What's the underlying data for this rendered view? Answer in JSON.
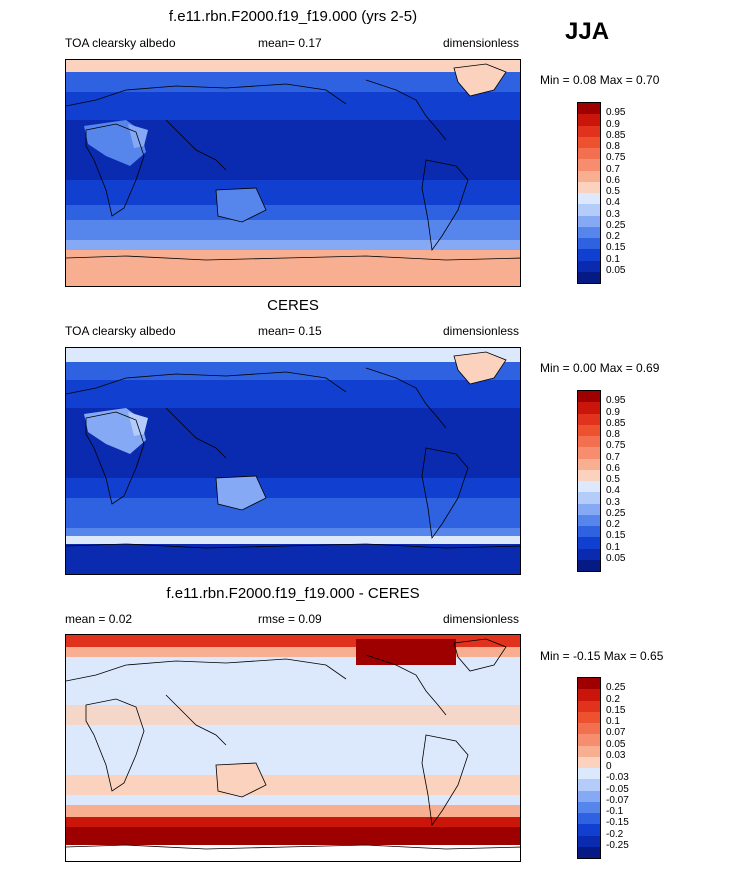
{
  "season": "JJA",
  "panels": [
    {
      "title": "f.e11.rbn.F2000.f19_f19.000 (yrs 2-5)",
      "left_label": "TOA clearsky albedo",
      "stat": "mean=  0.17",
      "units": "dimensionless",
      "minmax": "Min =  0.08 Max =  0.70",
      "levels": [
        "0.95",
        "0.9",
        "0.85",
        "0.8",
        "0.75",
        "0.7",
        "0.6",
        "0.5",
        "0.4",
        "0.3",
        "0.25",
        "0.2",
        "0.15",
        "0.1",
        "0.05"
      ],
      "colors": [
        "#9e0000",
        "#c9150a",
        "#e0321c",
        "#ee512e",
        "#f27050",
        "#f58d6e",
        "#f8af91",
        "#fbd2bd",
        "#dce8fc",
        "#b3ccfa",
        "#85a9f4",
        "#5686ec",
        "#2f62e0",
        "#1140d0",
        "#0a2ab0",
        "#061a86"
      ]
    },
    {
      "title": "CERES",
      "left_label": "TOA clearsky albedo",
      "stat": "mean=  0.15",
      "units": "dimensionless",
      "minmax": "Min =  0.00 Max =  0.69",
      "levels": [
        "0.95",
        "0.9",
        "0.85",
        "0.8",
        "0.75",
        "0.7",
        "0.6",
        "0.5",
        "0.4",
        "0.3",
        "0.25",
        "0.2",
        "0.15",
        "0.1",
        "0.05"
      ],
      "colors": [
        "#9e0000",
        "#c9150a",
        "#e0321c",
        "#ee512e",
        "#f27050",
        "#f58d6e",
        "#f8af91",
        "#fbd2bd",
        "#dce8fc",
        "#b3ccfa",
        "#85a9f4",
        "#5686ec",
        "#2f62e0",
        "#1140d0",
        "#0a2ab0",
        "#061a86"
      ]
    },
    {
      "title": "f.e11.rbn.F2000.f19_f19.000 - CERES",
      "left_label": "mean =  0.02",
      "stat": "rmse =  0.09",
      "units": "dimensionless",
      "minmax": "Min =  -0.15 Max =  0.65",
      "levels": [
        "0.25",
        "0.2",
        "0.15",
        "0.1",
        "0.07",
        "0.05",
        "0.03",
        "0",
        "-0.03",
        "-0.05",
        "-0.07",
        "-0.1",
        "-0.15",
        "-0.2",
        "-0.25"
      ],
      "colors": [
        "#9e0000",
        "#c9150a",
        "#e0321c",
        "#ee512e",
        "#f27050",
        "#f58d6e",
        "#f8af91",
        "#fbd2bd",
        "#dce8fc",
        "#b3ccfa",
        "#85a9f4",
        "#5686ec",
        "#2f62e0",
        "#1140d0",
        "#0a2ab0",
        "#061a86"
      ]
    }
  ]
}
